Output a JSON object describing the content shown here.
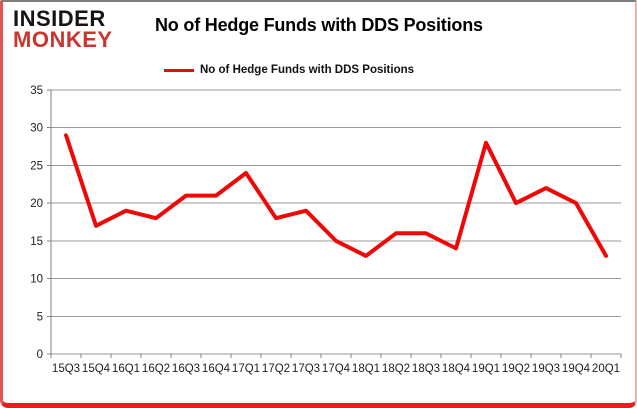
{
  "logo": {
    "line1": "INSIDER",
    "line2": "MONKEY"
  },
  "header": {
    "title": "No of Hedge Funds with DDS Positions"
  },
  "legend": {
    "label": "No of Hedge Funds with DDS Positions"
  },
  "colors": {
    "line": "#ee0808",
    "logo_black": "#141414",
    "logo_red": "#c8372d",
    "grid": "#9a9a9a",
    "axis": "#808080",
    "tick_label": "#21212b",
    "border_top": "#7d7d7d",
    "border_right": "#efb3b3",
    "border_bottom": "#ec1c1c",
    "border_left": "#e05555"
  },
  "chart_data": {
    "type": "line",
    "title": "No of Hedge Funds with DDS Positions",
    "categories": [
      "15Q3",
      "15Q4",
      "16Q1",
      "16Q2",
      "16Q3",
      "16Q4",
      "17Q1",
      "17Q2",
      "17Q3",
      "17Q4",
      "18Q1",
      "18Q2",
      "18Q3",
      "18Q4",
      "19Q1",
      "19Q2",
      "19Q3",
      "19Q4",
      "20Q1"
    ],
    "series": [
      {
        "name": "No of Hedge Funds with DDS Positions",
        "color": "#ee0808",
        "values": [
          29,
          17,
          19,
          18,
          21,
          21,
          24,
          18,
          19,
          15,
          13,
          16,
          16,
          14,
          28,
          20,
          22,
          20,
          13
        ]
      }
    ],
    "xlabel": "",
    "ylabel": "",
    "ylim": [
      0,
      35
    ],
    "ytick_step": 5,
    "grid": true,
    "legend_position": "top-center"
  }
}
